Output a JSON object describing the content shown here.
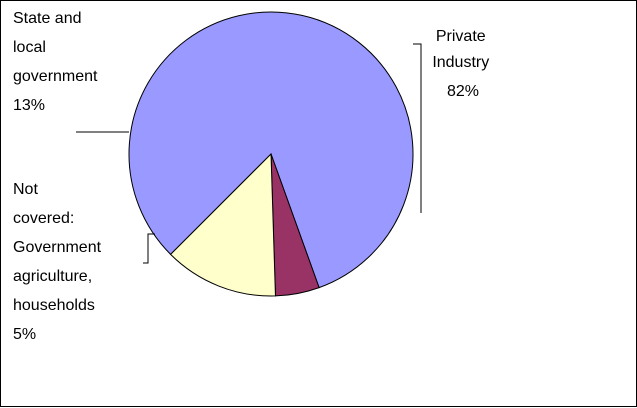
{
  "chart_data": {
    "type": "pie",
    "title": "",
    "slices": [
      {
        "label_lines": [
          "Private",
          "Industry",
          "82%"
        ],
        "value": 82,
        "color": "#9999ff"
      },
      {
        "label_lines": [
          "Not",
          "covered:",
          "Government",
          "agriculture,",
          "households",
          "5%"
        ],
        "value": 5,
        "color": "#993366"
      },
      {
        "label_lines": [
          "State and",
          "local",
          "government",
          "13%"
        ],
        "value": 13,
        "color": "#ffffcc"
      }
    ],
    "legend": "none",
    "start_angle_deg": 135
  }
}
